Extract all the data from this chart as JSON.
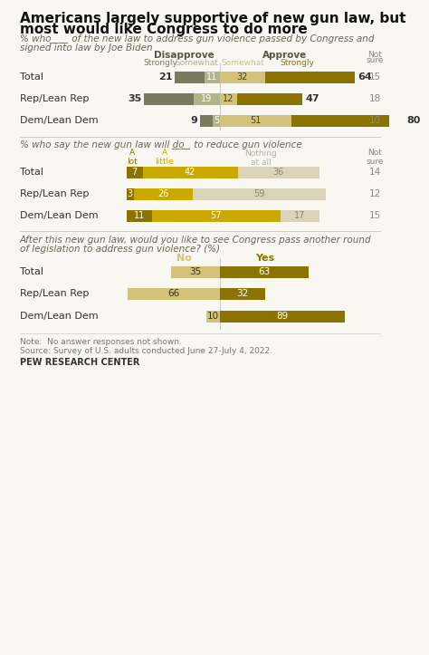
{
  "title_line1": "Americans largely supportive of new gun law, but",
  "title_line2": "most would like Congress to do more",
  "subtitle1_parts": [
    "% who ",
    "____",
    " of the new law to address gun violence passed by Congress and"
  ],
  "subtitle1_line2": "signed into law by Joe Biden",
  "subtitle2_parts": [
    "% who say the new gun law will do ",
    "____",
    " to reduce gun violence"
  ],
  "subtitle3_line1": "After this new gun law, would you like to see Congress pass another round",
  "subtitle3_line2": "of legislation to address gun violence? (%)",
  "note_line1": "Note:  No answer responses not shown.",
  "note_line2": "Source: Survey of U.S. adults conducted June 27-July 4, 2022.",
  "source_label": "PEW RESEARCH CENTER",
  "section1": {
    "rows": [
      "Total",
      "Rep/Lean Rep",
      "Dem/Lean Dem"
    ],
    "disapprove_strongly": [
      21,
      35,
      9
    ],
    "disapprove_somewhat": [
      11,
      19,
      5
    ],
    "approve_somewhat": [
      32,
      12,
      51
    ],
    "approve_strongly": [
      64,
      47,
      80
    ],
    "not_sure": [
      15,
      18,
      10
    ],
    "col_disapprove_strongly_label": "Strongly",
    "col_disapprove_somewhat_label": "Somewhat",
    "col_approve_somewhat_label": "Somewhat",
    "col_approve_strongly_label": "Strongly",
    "col_disapprove_header": "Disapprove",
    "col_approve_header": "Approve",
    "col_not_sure_header": "Not\nsure",
    "colors": {
      "disapprove_strongly": "#7a7a5c",
      "disapprove_somewhat": "#b3b38a",
      "approve_somewhat": "#d4c27a",
      "approve_strongly": "#8b7300"
    }
  },
  "section2": {
    "rows": [
      "Total",
      "Rep/Lean Rep",
      "Dem/Lean Dem"
    ],
    "a_lot": [
      7,
      3,
      11
    ],
    "a_little": [
      42,
      26,
      57
    ],
    "nothing_at_all": [
      36,
      59,
      17
    ],
    "not_sure": [
      14,
      12,
      15
    ],
    "col_a_lot_label": "A\nlot",
    "col_a_little_label": "A\nlittle",
    "col_nothing_label": "Nothing\nat all",
    "col_not_sure_label": "Not\nsure",
    "colors": {
      "a_lot": "#8b7300",
      "a_little": "#c9a800",
      "nothing_at_all": "#d9d4b8"
    }
  },
  "section3": {
    "rows": [
      "Total",
      "Rep/Lean Rep",
      "Dem/Lean Dem"
    ],
    "no": [
      35,
      66,
      10
    ],
    "yes": [
      63,
      32,
      89
    ],
    "col_no_label": "No",
    "col_yes_label": "Yes",
    "colors": {
      "no": "#d4c27a",
      "yes": "#8b7300"
    }
  },
  "bg_color": "#f9f7f2",
  "text_color": "#333333",
  "gray_text": "#888888",
  "divider_color": "#cccccc",
  "subtitle_color": "#777766"
}
